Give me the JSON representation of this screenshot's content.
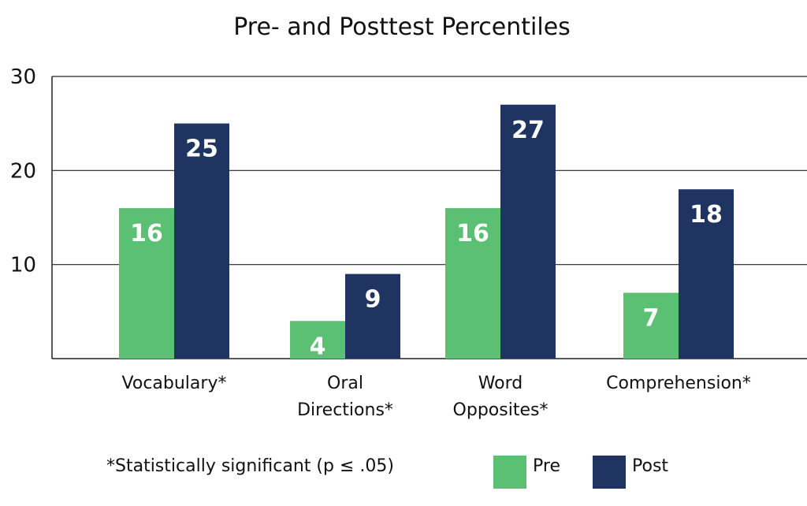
{
  "chart_data": {
    "type": "bar",
    "title": "Pre- and Posttest Percentiles",
    "xlabel": "",
    "ylabel": "",
    "ylim": [
      0,
      30
    ],
    "yticks": [
      10,
      20,
      30
    ],
    "grid": true,
    "legend_position": "bottom-right",
    "categories": [
      [
        "Vocabulary*"
      ],
      [
        "Oral",
        "Directions*"
      ],
      [
        "Word",
        "Opposites*"
      ],
      [
        "Comprehension*"
      ]
    ],
    "series": [
      {
        "name": "Pre",
        "color": "#5bbf74",
        "values": [
          16,
          4,
          16,
          7
        ]
      },
      {
        "name": "Post",
        "color": "#1f3460",
        "values": [
          25,
          9,
          27,
          18
        ]
      }
    ],
    "note": "*Statistically significant (p ≤ .05)"
  }
}
